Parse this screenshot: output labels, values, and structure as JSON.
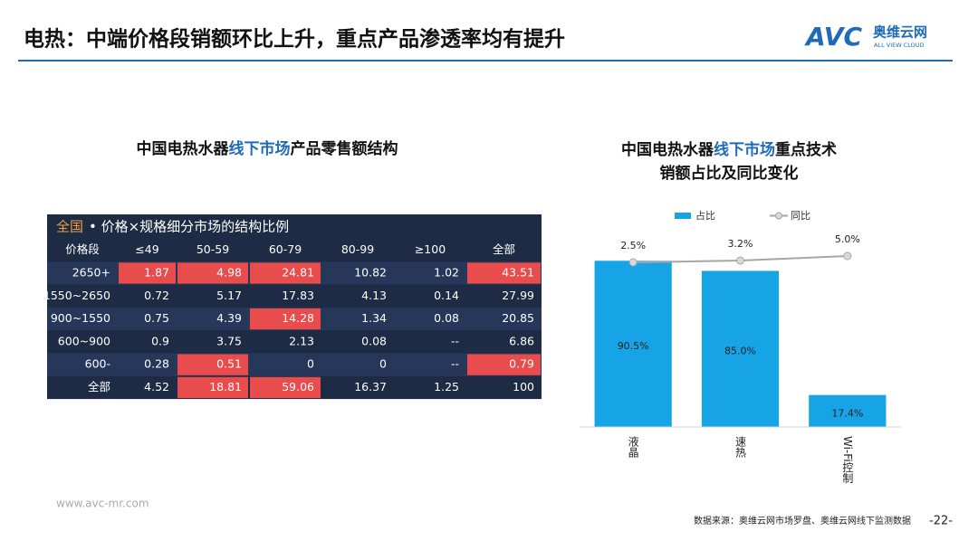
{
  "header": {
    "title": "电热：中端价格段销额环比上升，重点产品渗透率均有提升",
    "logo": {
      "mark": "AVC",
      "name": "奥维云网",
      "sub": "ALL VIEW CLOUD"
    }
  },
  "left": {
    "title_parts": [
      "中国电热水器",
      "线下市场",
      "产品零售额结构"
    ]
  },
  "table": {
    "caption_region": "全国",
    "caption": "• 价格×规格细分市场的结构比例",
    "header": [
      "价格段",
      "≤49",
      "50-59",
      "60-79",
      "80-99",
      "≥100",
      "全部"
    ],
    "rows": [
      {
        "cells": [
          "2650+",
          "1.87",
          "4.98",
          "24.81",
          "10.82",
          "1.02",
          "43.51"
        ],
        "highlight": [
          1,
          2,
          3,
          6
        ]
      },
      {
        "cells": [
          "1550~2650",
          "0.72",
          "5.17",
          "17.83",
          "4.13",
          "0.14",
          "27.99"
        ],
        "highlight": []
      },
      {
        "cells": [
          "900~1550",
          "0.75",
          "4.39",
          "14.28",
          "1.34",
          "0.08",
          "20.85"
        ],
        "highlight": [
          3
        ]
      },
      {
        "cells": [
          "600~900",
          "0.9",
          "3.75",
          "2.13",
          "0.08",
          "--",
          "6.86"
        ],
        "highlight": []
      },
      {
        "cells": [
          "600-",
          "0.28",
          "0.51",
          "0",
          "0",
          "--",
          "0.79"
        ],
        "highlight": [
          2,
          6
        ]
      },
      {
        "cells": [
          "全部",
          "4.52",
          "18.81",
          "59.06",
          "16.37",
          "1.25",
          "100"
        ],
        "highlight": [
          2,
          3
        ]
      }
    ]
  },
  "chart_data": {
    "type": "bar",
    "title_parts": [
      [
        "中国电热水器",
        "线下市场",
        "重点技术"
      ],
      [
        "销额占比及同比变化"
      ]
    ],
    "categories": [
      "液晶",
      "速热",
      "Wi-Fi控制"
    ],
    "ylim": [
      0,
      100
    ],
    "y2lim": [
      -62.5,
      10
    ],
    "series": [
      {
        "name": "占比",
        "type": "bar",
        "color": "#17a4e6",
        "values": [
          90.5,
          85.0,
          17.4
        ],
        "value_labels": [
          "90.5%",
          "85.0%",
          "17.4%"
        ]
      },
      {
        "name": "同比",
        "type": "line",
        "axis": "y2",
        "color": "#a6a6a6",
        "values": [
          2.5,
          3.2,
          5.0
        ],
        "value_labels": [
          "2.5%",
          "3.2%",
          "5.0%"
        ]
      }
    ]
  },
  "footer": {
    "site": "www.avc-mr.com",
    "source": "数据来源：奥维云网市场罗盘、奥维云网线下监测数据",
    "page": "-22-"
  }
}
